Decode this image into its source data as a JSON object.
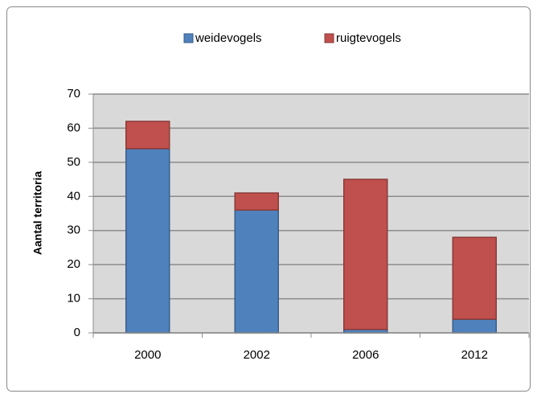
{
  "chart_data": {
    "type": "bar",
    "stacked": true,
    "y_label": "Aantal territoria",
    "categories": [
      "2000",
      "2002",
      "2006",
      "2012"
    ],
    "series": [
      {
        "name": "weidevogels",
        "color": "#4f81bd",
        "values": [
          54,
          36,
          1,
          4
        ]
      },
      {
        "name": "ruigtevogels",
        "color": "#c0504d",
        "values": [
          8,
          5,
          44,
          24
        ]
      }
    ],
    "ylim": [
      0,
      70
    ],
    "yticks": [
      0,
      10,
      20,
      30,
      40,
      50,
      60,
      70
    ],
    "grid": true,
    "legend": "top"
  }
}
